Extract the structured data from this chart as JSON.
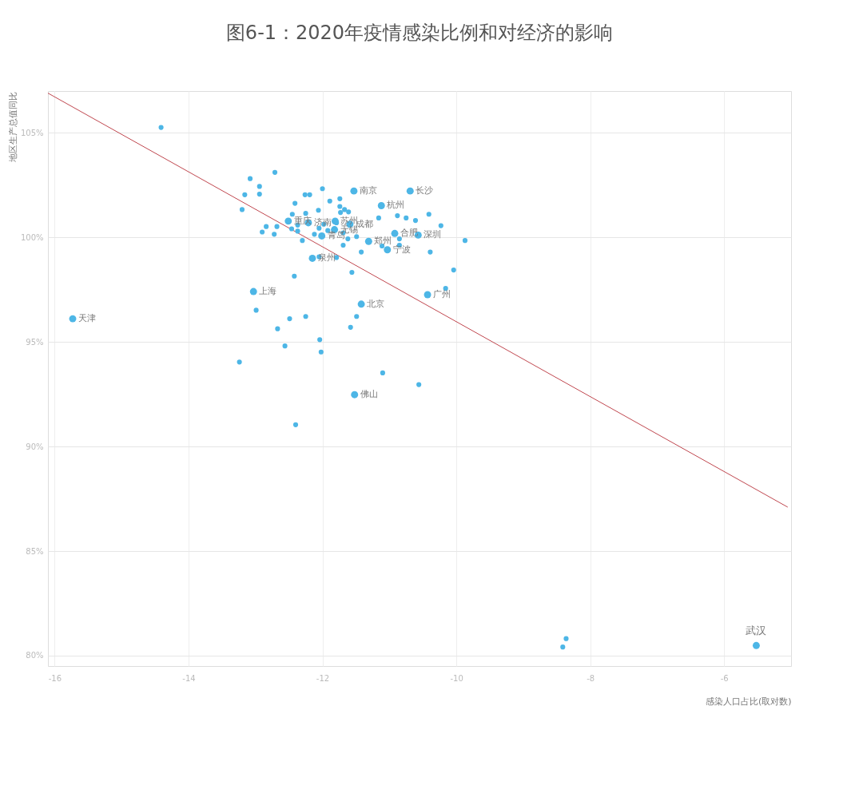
{
  "chart_data": {
    "type": "scatter",
    "title": "图6-1：2020年疫情感染比例和对经济的影响",
    "xlabel": "感染人口占比(取对数)",
    "ylabel": "地区生产总值同比",
    "xlim": [
      -16.1,
      -5
    ],
    "xticks": [
      -16,
      -14,
      -12,
      -10,
      -8,
      -6
    ],
    "ylim": [
      79.5,
      107
    ],
    "yticks": [
      {
        "value": 80,
        "label": "80%"
      },
      {
        "value": 85,
        "label": "85%"
      },
      {
        "value": 90,
        "label": "90%"
      },
      {
        "value": 95,
        "label": "95%"
      },
      {
        "value": 100,
        "label": "100%"
      },
      {
        "value": 105,
        "label": "105%"
      }
    ],
    "grid": true,
    "marker": "circle",
    "series": [
      {
        "type": "line",
        "marker": "none",
        "line_style": "solid",
        "color": "#c0474f",
        "x": [
          -16.1,
          -5.05
        ],
        "values": [
          106.9,
          87.1
        ]
      },
      {
        "color": "#4db6e6",
        "x": [
          -14.41,
          -13.08,
          -12.71,
          -12.94,
          -13.16,
          -12.94,
          -13.2,
          -12.26,
          -12.19,
          -12.0,
          -11.89,
          -11.74,
          -11.74,
          -11.67,
          -12.41,
          -12.45,
          -12.25,
          -12.06,
          -11.73,
          -11.61,
          -11.16,
          -10.88,
          -10.75,
          -10.61,
          -10.41,
          -10.23,
          -12.84,
          -12.68,
          -12.9,
          -12.72,
          -12.46,
          -12.37,
          -12.37,
          -12.3,
          -12.12,
          -12.05,
          -11.98,
          -11.92,
          -11.79,
          -11.69,
          -11.62,
          -11.69,
          -11.49,
          -11.42,
          -11.11,
          -10.85,
          -10.85,
          -10.39,
          -9.87,
          -12.05,
          -11.79,
          -11.56,
          -12.42,
          -10.04,
          -10.16,
          -12.99,
          -12.67,
          -12.49,
          -12.25,
          -11.49,
          -11.58,
          -12.04,
          -12.56,
          -12.02,
          -13.24,
          -11.1,
          -10.56,
          -12.4,
          -8.36,
          -8.41
        ],
        "values": [
          105.26,
          102.81,
          103.11,
          102.44,
          102.04,
          102.07,
          101.33,
          102.04,
          102.04,
          102.33,
          101.74,
          101.85,
          101.48,
          101.33,
          101.63,
          101.11,
          101.15,
          101.3,
          101.19,
          101.22,
          100.93,
          101.04,
          100.93,
          100.81,
          101.11,
          100.56,
          100.52,
          100.52,
          100.26,
          100.15,
          100.41,
          100.59,
          100.3,
          99.85,
          100.15,
          100.44,
          100.63,
          100.33,
          100.7,
          100.22,
          99.93,
          99.63,
          100.04,
          99.3,
          99.59,
          99.93,
          99.63,
          99.3,
          99.85,
          99.07,
          99.04,
          98.33,
          98.15,
          98.44,
          97.56,
          96.52,
          95.63,
          96.11,
          96.22,
          96.22,
          95.7,
          95.11,
          94.81,
          94.52,
          94.04,
          93.52,
          92.96,
          91.04,
          80.81,
          80.41
        ]
      },
      {
        "color": "#4db6e6",
        "x": [
          -11.53,
          -10.69,
          -11.12,
          -12.51,
          -12.21,
          -11.81,
          -11.59,
          -11.82,
          -10.92,
          -10.57,
          -12.01,
          -11.31,
          -11.03,
          -12.15,
          -13.03,
          -11.42,
          -10.43,
          -11.52,
          -15.73,
          -5.52
        ],
        "values": [
          102.22,
          102.22,
          101.52,
          100.78,
          100.7,
          100.78,
          100.63,
          100.37,
          100.19,
          100.11,
          100.07,
          99.81,
          99.41,
          99.0,
          97.41,
          96.81,
          97.26,
          92.48,
          96.11,
          80.48
        ]
      }
    ],
    "annotations": [
      {
        "text": "南京",
        "x": -11.53,
        "y": 102.22
      },
      {
        "text": "长沙",
        "x": -10.69,
        "y": 102.22
      },
      {
        "text": "杭州",
        "x": -11.12,
        "y": 101.52
      },
      {
        "text": "重庆",
        "x": -12.51,
        "y": 100.78
      },
      {
        "text": "济南",
        "x": -12.21,
        "y": 100.7
      },
      {
        "text": "苏州",
        "x": -11.81,
        "y": 100.78
      },
      {
        "text": "成都",
        "x": -11.59,
        "y": 100.63
      },
      {
        "text": "无锡",
        "x": -11.82,
        "y": 100.37
      },
      {
        "text": "合肥",
        "x": -10.92,
        "y": 100.19
      },
      {
        "text": "深圳",
        "x": -10.57,
        "y": 100.11
      },
      {
        "text": "青岛",
        "x": -12.01,
        "y": 100.07
      },
      {
        "text": "郑州",
        "x": -11.31,
        "y": 99.81
      },
      {
        "text": "宁波",
        "x": -11.03,
        "y": 99.41
      },
      {
        "text": "泉州",
        "x": -12.15,
        "y": 99.0
      },
      {
        "text": "上海",
        "x": -13.03,
        "y": 97.41
      },
      {
        "text": "北京",
        "x": -11.42,
        "y": 96.81
      },
      {
        "text": "广州",
        "x": -10.43,
        "y": 97.26
      },
      {
        "text": "佛山",
        "x": -11.52,
        "y": 92.48
      },
      {
        "text": "天津",
        "x": -15.73,
        "y": 96.11
      },
      {
        "text": "武汉",
        "x": -5.52,
        "y": 80.48
      }
    ]
  }
}
